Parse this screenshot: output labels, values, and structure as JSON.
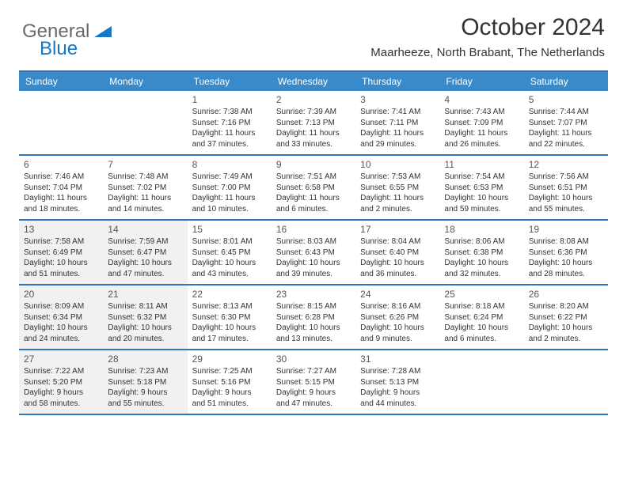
{
  "logo": {
    "general": "General",
    "blue": "Blue"
  },
  "title": "October 2024",
  "location": "Maarheeze, North Brabant, The Netherlands",
  "dayNames": [
    "Sunday",
    "Monday",
    "Tuesday",
    "Wednesday",
    "Thursday",
    "Friday",
    "Saturday"
  ],
  "colors": {
    "headerBar": "#3a8ac9",
    "border": "#2a77bd",
    "shade": "#f1f1f1",
    "logoGray": "#6a6a6a",
    "logoBlue": "#1976c1"
  },
  "weeks": [
    [
      {
        "day": "",
        "sunrise": "",
        "sunset": "",
        "daylight": "",
        "shade": false
      },
      {
        "day": "",
        "sunrise": "",
        "sunset": "",
        "daylight": "",
        "shade": false
      },
      {
        "day": "1",
        "sunrise": "Sunrise: 7:38 AM",
        "sunset": "Sunset: 7:16 PM",
        "daylight": "Daylight: 11 hours and 37 minutes.",
        "shade": false
      },
      {
        "day": "2",
        "sunrise": "Sunrise: 7:39 AM",
        "sunset": "Sunset: 7:13 PM",
        "daylight": "Daylight: 11 hours and 33 minutes.",
        "shade": false
      },
      {
        "day": "3",
        "sunrise": "Sunrise: 7:41 AM",
        "sunset": "Sunset: 7:11 PM",
        "daylight": "Daylight: 11 hours and 29 minutes.",
        "shade": false
      },
      {
        "day": "4",
        "sunrise": "Sunrise: 7:43 AM",
        "sunset": "Sunset: 7:09 PM",
        "daylight": "Daylight: 11 hours and 26 minutes.",
        "shade": false
      },
      {
        "day": "5",
        "sunrise": "Sunrise: 7:44 AM",
        "sunset": "Sunset: 7:07 PM",
        "daylight": "Daylight: 11 hours and 22 minutes.",
        "shade": false
      }
    ],
    [
      {
        "day": "6",
        "sunrise": "Sunrise: 7:46 AM",
        "sunset": "Sunset: 7:04 PM",
        "daylight": "Daylight: 11 hours and 18 minutes.",
        "shade": false
      },
      {
        "day": "7",
        "sunrise": "Sunrise: 7:48 AM",
        "sunset": "Sunset: 7:02 PM",
        "daylight": "Daylight: 11 hours and 14 minutes.",
        "shade": false
      },
      {
        "day": "8",
        "sunrise": "Sunrise: 7:49 AM",
        "sunset": "Sunset: 7:00 PM",
        "daylight": "Daylight: 11 hours and 10 minutes.",
        "shade": false
      },
      {
        "day": "9",
        "sunrise": "Sunrise: 7:51 AM",
        "sunset": "Sunset: 6:58 PM",
        "daylight": "Daylight: 11 hours and 6 minutes.",
        "shade": false
      },
      {
        "day": "10",
        "sunrise": "Sunrise: 7:53 AM",
        "sunset": "Sunset: 6:55 PM",
        "daylight": "Daylight: 11 hours and 2 minutes.",
        "shade": false
      },
      {
        "day": "11",
        "sunrise": "Sunrise: 7:54 AM",
        "sunset": "Sunset: 6:53 PM",
        "daylight": "Daylight: 10 hours and 59 minutes.",
        "shade": false
      },
      {
        "day": "12",
        "sunrise": "Sunrise: 7:56 AM",
        "sunset": "Sunset: 6:51 PM",
        "daylight": "Daylight: 10 hours and 55 minutes.",
        "shade": false
      }
    ],
    [
      {
        "day": "13",
        "sunrise": "Sunrise: 7:58 AM",
        "sunset": "Sunset: 6:49 PM",
        "daylight": "Daylight: 10 hours and 51 minutes.",
        "shade": true
      },
      {
        "day": "14",
        "sunrise": "Sunrise: 7:59 AM",
        "sunset": "Sunset: 6:47 PM",
        "daylight": "Daylight: 10 hours and 47 minutes.",
        "shade": true
      },
      {
        "day": "15",
        "sunrise": "Sunrise: 8:01 AM",
        "sunset": "Sunset: 6:45 PM",
        "daylight": "Daylight: 10 hours and 43 minutes.",
        "shade": false
      },
      {
        "day": "16",
        "sunrise": "Sunrise: 8:03 AM",
        "sunset": "Sunset: 6:43 PM",
        "daylight": "Daylight: 10 hours and 39 minutes.",
        "shade": false
      },
      {
        "day": "17",
        "sunrise": "Sunrise: 8:04 AM",
        "sunset": "Sunset: 6:40 PM",
        "daylight": "Daylight: 10 hours and 36 minutes.",
        "shade": false
      },
      {
        "day": "18",
        "sunrise": "Sunrise: 8:06 AM",
        "sunset": "Sunset: 6:38 PM",
        "daylight": "Daylight: 10 hours and 32 minutes.",
        "shade": false
      },
      {
        "day": "19",
        "sunrise": "Sunrise: 8:08 AM",
        "sunset": "Sunset: 6:36 PM",
        "daylight": "Daylight: 10 hours and 28 minutes.",
        "shade": false
      }
    ],
    [
      {
        "day": "20",
        "sunrise": "Sunrise: 8:09 AM",
        "sunset": "Sunset: 6:34 PM",
        "daylight": "Daylight: 10 hours and 24 minutes.",
        "shade": true
      },
      {
        "day": "21",
        "sunrise": "Sunrise: 8:11 AM",
        "sunset": "Sunset: 6:32 PM",
        "daylight": "Daylight: 10 hours and 20 minutes.",
        "shade": true
      },
      {
        "day": "22",
        "sunrise": "Sunrise: 8:13 AM",
        "sunset": "Sunset: 6:30 PM",
        "daylight": "Daylight: 10 hours and 17 minutes.",
        "shade": false
      },
      {
        "day": "23",
        "sunrise": "Sunrise: 8:15 AM",
        "sunset": "Sunset: 6:28 PM",
        "daylight": "Daylight: 10 hours and 13 minutes.",
        "shade": false
      },
      {
        "day": "24",
        "sunrise": "Sunrise: 8:16 AM",
        "sunset": "Sunset: 6:26 PM",
        "daylight": "Daylight: 10 hours and 9 minutes.",
        "shade": false
      },
      {
        "day": "25",
        "sunrise": "Sunrise: 8:18 AM",
        "sunset": "Sunset: 6:24 PM",
        "daylight": "Daylight: 10 hours and 6 minutes.",
        "shade": false
      },
      {
        "day": "26",
        "sunrise": "Sunrise: 8:20 AM",
        "sunset": "Sunset: 6:22 PM",
        "daylight": "Daylight: 10 hours and 2 minutes.",
        "shade": false
      }
    ],
    [
      {
        "day": "27",
        "sunrise": "Sunrise: 7:22 AM",
        "sunset": "Sunset: 5:20 PM",
        "daylight": "Daylight: 9 hours and 58 minutes.",
        "shade": true
      },
      {
        "day": "28",
        "sunrise": "Sunrise: 7:23 AM",
        "sunset": "Sunset: 5:18 PM",
        "daylight": "Daylight: 9 hours and 55 minutes.",
        "shade": true
      },
      {
        "day": "29",
        "sunrise": "Sunrise: 7:25 AM",
        "sunset": "Sunset: 5:16 PM",
        "daylight": "Daylight: 9 hours and 51 minutes.",
        "shade": false
      },
      {
        "day": "30",
        "sunrise": "Sunrise: 7:27 AM",
        "sunset": "Sunset: 5:15 PM",
        "daylight": "Daylight: 9 hours and 47 minutes.",
        "shade": false
      },
      {
        "day": "31",
        "sunrise": "Sunrise: 7:28 AM",
        "sunset": "Sunset: 5:13 PM",
        "daylight": "Daylight: 9 hours and 44 minutes.",
        "shade": false
      },
      {
        "day": "",
        "sunrise": "",
        "sunset": "",
        "daylight": "",
        "shade": false
      },
      {
        "day": "",
        "sunrise": "",
        "sunset": "",
        "daylight": "",
        "shade": false
      }
    ]
  ]
}
